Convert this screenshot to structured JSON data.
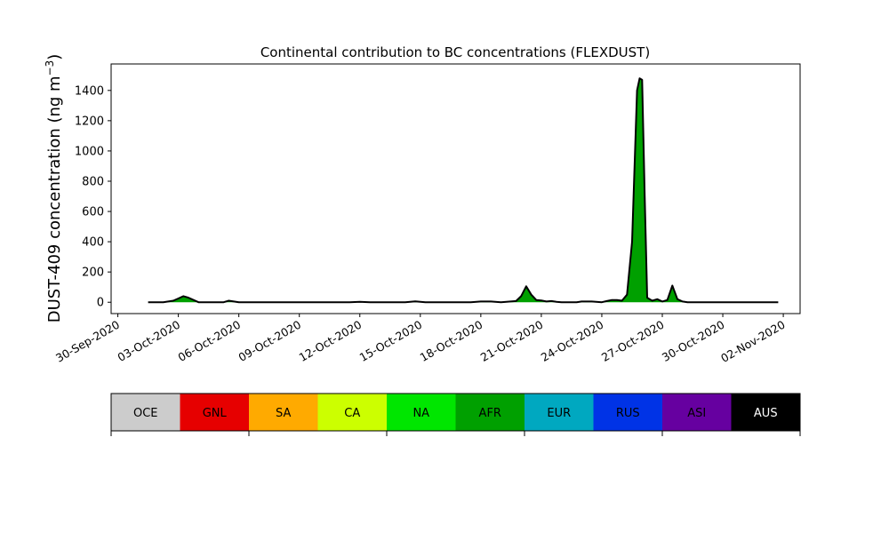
{
  "chart_data": {
    "type": "area",
    "title": "Continental contribution to BC concentrations (FLEXDUST)",
    "ylabel": "DUST-409 concentration (ng m",
    "ylabel_sup": "−3",
    "ylabel_close": ")",
    "xlabel": "",
    "ylim": [
      -75,
      1575
    ],
    "xlim": [
      "2020-09-29T16:00",
      "2020-11-02T20:00"
    ],
    "grid": false,
    "x_ticks": [
      "30-Sep-2020",
      "03-Oct-2020",
      "06-Oct-2020",
      "09-Oct-2020",
      "12-Oct-2020",
      "15-Oct-2020",
      "18-Oct-2020",
      "21-Oct-2020",
      "24-Oct-2020",
      "27-Oct-2020",
      "30-Oct-2020",
      "02-Nov-2020"
    ],
    "y_ticks": [
      0,
      200,
      400,
      600,
      800,
      1000,
      1200,
      1400
    ],
    "x": [
      "2020-10-01T12:00",
      "2020-10-02T06:00",
      "2020-10-02T18:00",
      "2020-10-03T00:00",
      "2020-10-03T06:00",
      "2020-10-03T12:00",
      "2020-10-04T00:00",
      "2020-10-05T06:00",
      "2020-10-05T12:00",
      "2020-10-05T18:00",
      "2020-10-06T00:00",
      "2020-10-06T12:00",
      "2020-10-11T12:00",
      "2020-10-12T00:00",
      "2020-10-12T12:00",
      "2020-10-14T06:00",
      "2020-10-14T18:00",
      "2020-10-15T06:00",
      "2020-10-17T12:00",
      "2020-10-18T00:00",
      "2020-10-18T12:00",
      "2020-10-19T00:00",
      "2020-10-19T18:00",
      "2020-10-20T00:00",
      "2020-10-20T06:00",
      "2020-10-20T12:00",
      "2020-10-20T18:00",
      "2020-10-21T00:00",
      "2020-10-21T06:00",
      "2020-10-21T12:00",
      "2020-10-21T18:00",
      "2020-10-22T00:00",
      "2020-10-22T06:00",
      "2020-10-22T12:00",
      "2020-10-22T18:00",
      "2020-10-23T00:00",
      "2020-10-23T12:00",
      "2020-10-24T00:00",
      "2020-10-24T06:00",
      "2020-10-24T12:00",
      "2020-10-24T18:00",
      "2020-10-25T00:00",
      "2020-10-25T06:00",
      "2020-10-25T12:00",
      "2020-10-25T18:00",
      "2020-10-25T21:00",
      "2020-10-26T00:00",
      "2020-10-26T03:00",
      "2020-10-26T06:00",
      "2020-10-26T09:00",
      "2020-10-26T12:00",
      "2020-10-26T18:00",
      "2020-10-27T00:00",
      "2020-10-27T06:00",
      "2020-10-27T12:00",
      "2020-10-27T18:00",
      "2020-10-28T00:00",
      "2020-10-28T06:00",
      "2020-10-28T12:00",
      "2020-10-28T18:00",
      "2020-10-29T00:00",
      "2020-10-29T12:00",
      "2020-10-30T00:00",
      "2020-11-01T18:00"
    ],
    "values": [
      0,
      0,
      10,
      25,
      40,
      30,
      0,
      0,
      10,
      5,
      0,
      0,
      0,
      3,
      0,
      0,
      6,
      0,
      0,
      5,
      5,
      0,
      8,
      40,
      105,
      50,
      15,
      12,
      5,
      8,
      3,
      0,
      0,
      0,
      0,
      5,
      5,
      0,
      8,
      15,
      15,
      10,
      50,
      400,
      1400,
      1480,
      1470,
      700,
      30,
      20,
      10,
      20,
      5,
      15,
      110,
      20,
      5,
      0,
      0,
      0,
      0,
      0,
      0,
      0
    ],
    "legend": [
      "OCE",
      "GNL",
      "SA",
      "CA",
      "NA",
      "AFR",
      "EUR",
      "RUS",
      "ASI",
      "AUS"
    ],
    "legend_placement": "bottom",
    "colors": {
      "OCE": "#cccccc",
      "GNL": "#e60000",
      "SA": "#ffaa00",
      "CA": "#ccff00",
      "NA": "#00e600",
      "AFR": "#00a000",
      "EUR": "#00a8c0",
      "RUS": "#0033e6",
      "ASI": "#6600a0",
      "AUS": "#000000",
      "total_line": "#000000",
      "fill": "#00a000"
    }
  }
}
